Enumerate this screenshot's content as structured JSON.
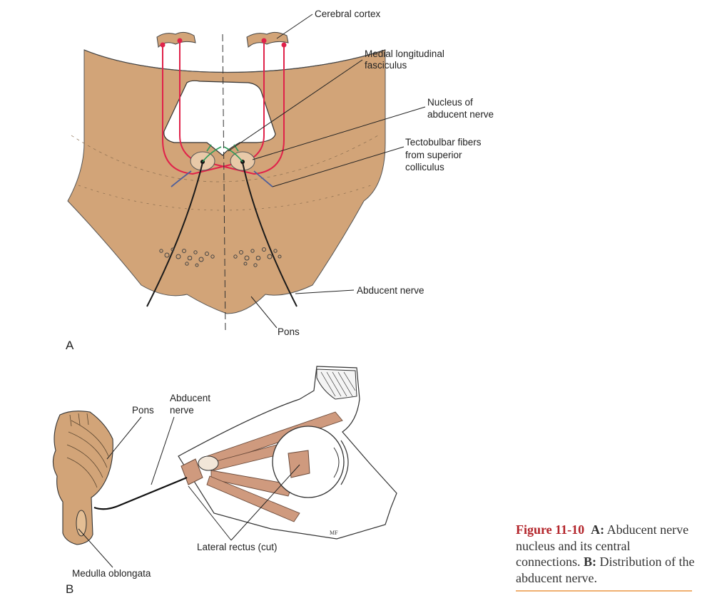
{
  "panel_a": {
    "letter": "A",
    "labels": {
      "cerebral_cortex": "Cerebral cortex",
      "mlf_line1": "Medial longitudinal",
      "mlf_line2": "fasciculus",
      "nucleus_line1": "Nucleus of",
      "nucleus_line2": "abducent nerve",
      "tecto_line1": "Tectobulbar fibers",
      "tecto_line2": "from superior",
      "tecto_line3": "colliculus",
      "abducent_nerve": "Abducent nerve",
      "pons": "Pons"
    }
  },
  "panel_b": {
    "letter": "B",
    "labels": {
      "pons": "Pons",
      "abducent_line1": "Abducent",
      "abducent_line2": "nerve",
      "lateral_rectus": "Lateral rectus (cut)",
      "medulla": "Medulla oblongata",
      "artist_mark": "MF"
    }
  },
  "caption": {
    "figure_number": "Figure 11-10",
    "part_a": "A:",
    "text_a": " Abducent nerve nucleus and its central connections. ",
    "part_b": "B:",
    "text_b": " Distribution of the abducent nerve."
  },
  "colors": {
    "tissue": "#d2a478",
    "pathway_red": "#e0224a",
    "mlf_green": "#2e9a5a",
    "tecto_blue": "#4f5f9a",
    "nerve": "#1a1a1a",
    "muscle": "#cf9a7e",
    "caption_red": "#b3242a",
    "rule": "#f0b071"
  }
}
